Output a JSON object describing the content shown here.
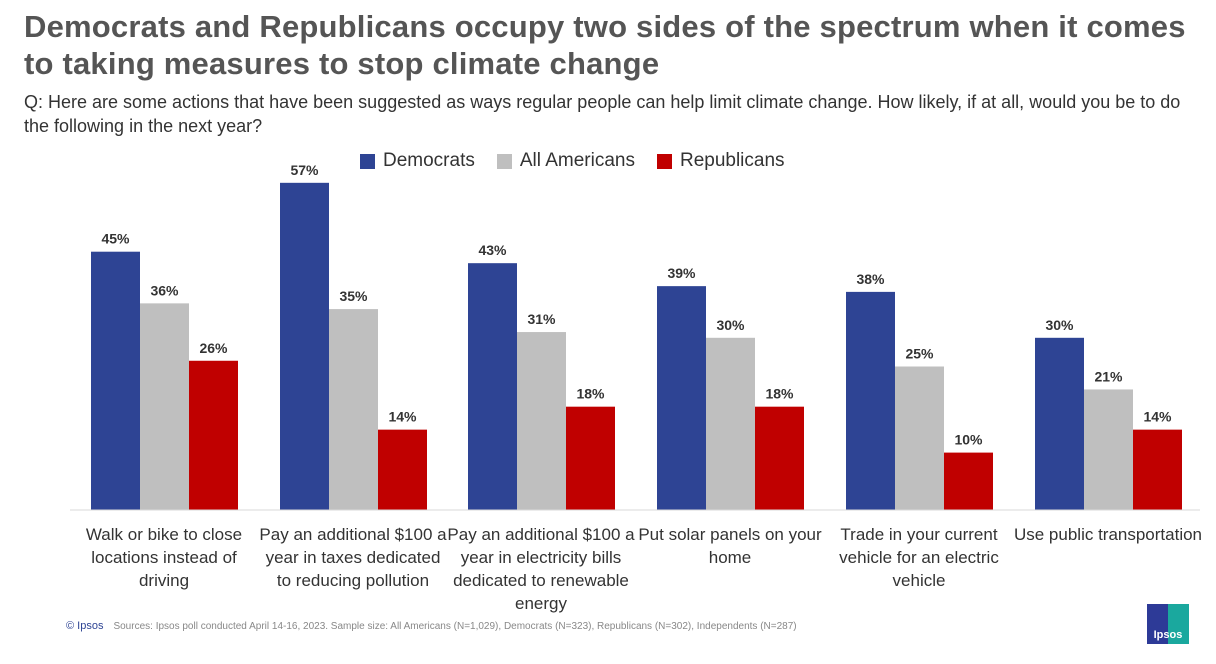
{
  "title": "Democrats and Republicans occupy two sides of the spectrum when it comes to taking measures to stop climate change",
  "question": "Q: Here are some actions that have been suggested as ways regular people can help limit climate change. How likely, if at all, would you be to do the following in the next year?",
  "footer": {
    "brand": "© Ipsos",
    "source": "Sources: Ipsos poll conducted April 14-16, 2023. Sample size: All Americans (N=1,029), Democrats (N=323), Republicans (N=302), Independents (N=287)"
  },
  "logo_text": "Ipsos",
  "chart_data": {
    "type": "bar",
    "categories": [
      "Walk or bike to close locations instead of driving",
      "Pay an additional $100 a year in taxes dedicated to reducing pollution",
      "Pay an additional $100 a year in electricity bills dedicated to renewable energy",
      "Put solar panels on your home",
      "Trade in your current vehicle for an electric vehicle",
      "Use public transportation"
    ],
    "series": [
      {
        "name": "Democrats",
        "color": "#2e4494",
        "values": [
          45,
          57,
          43,
          39,
          38,
          30
        ]
      },
      {
        "name": "All Americans",
        "color": "#bfbfbf",
        "values": [
          36,
          35,
          31,
          30,
          25,
          21
        ]
      },
      {
        "name": "Republicans",
        "color": "#c00000",
        "values": [
          26,
          14,
          18,
          18,
          10,
          14
        ]
      }
    ],
    "unit": "%",
    "legend": "top",
    "ylim": [
      0,
      60
    ],
    "grid": false
  }
}
